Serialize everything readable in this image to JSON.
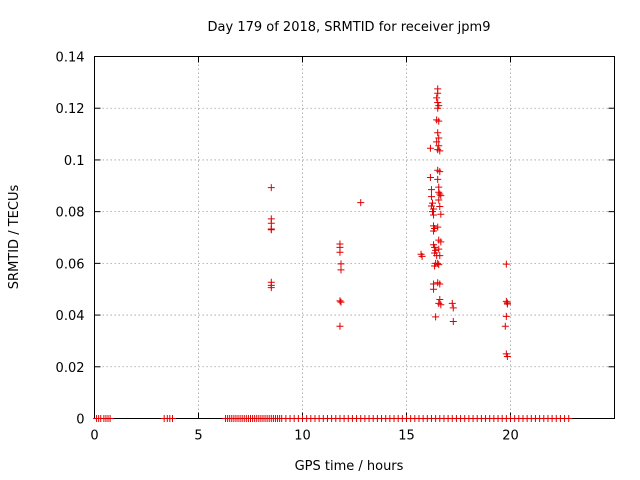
{
  "chart_data": {
    "type": "scatter",
    "title": "Day 179 of 2018, SRMTID for receiver jpm9",
    "xlabel": "GPS time / hours",
    "ylabel": "SRMTID / TECUs",
    "xlim": [
      0,
      25
    ],
    "ylim": [
      0,
      0.14
    ],
    "xticks": [
      0,
      5,
      10,
      15,
      20
    ],
    "xtick_labels": [
      "0",
      "5",
      "10",
      "15",
      "20"
    ],
    "yticks": [
      0,
      0.02,
      0.04,
      0.06,
      0.08,
      0.1,
      0.12,
      0.14
    ],
    "ytick_labels": [
      "0",
      "0.02",
      "0.04",
      "0.06",
      "0.08",
      "0.1",
      "0.12",
      "0.14"
    ],
    "grid": true,
    "series": [
      {
        "name": "SRMTID",
        "color": "#e00000",
        "marker": "plus",
        "baseline_x": [
          0.1,
          0.2,
          0.3,
          0.45,
          0.55,
          0.65,
          0.75,
          3.35,
          3.5,
          3.62,
          3.75,
          6.3,
          6.4,
          6.5,
          6.6,
          6.7,
          6.8,
          6.9,
          7.0,
          7.1,
          7.2,
          7.3,
          7.4,
          7.5,
          7.6,
          7.7,
          7.8,
          7.9,
          8.0,
          8.1,
          8.2,
          8.3,
          8.4,
          8.5,
          8.6,
          8.7,
          8.8,
          8.9,
          9.0,
          9.2,
          9.4,
          9.6,
          9.8,
          10.0,
          10.2,
          10.4,
          10.6,
          10.8,
          11.0,
          11.2,
          11.4,
          11.6,
          11.8,
          12.0,
          12.2,
          12.4,
          12.6,
          12.8,
          13.0,
          13.2,
          13.4,
          13.6,
          13.8,
          14.0,
          14.2,
          14.4,
          14.6,
          14.8,
          15.0,
          15.2,
          15.4,
          15.6,
          15.8,
          16.0,
          16.2,
          16.4,
          16.6,
          16.8,
          17.0,
          17.2,
          17.4,
          17.6,
          17.8,
          18.0,
          18.2,
          18.4,
          18.6,
          18.8,
          19.0,
          19.2,
          19.4,
          19.6,
          19.8,
          20.0,
          20.2,
          20.4,
          20.6,
          20.8,
          21.0,
          21.2,
          21.4,
          21.6,
          21.8,
          22.0,
          22.2,
          22.4,
          22.6,
          22.8
        ],
        "points": [
          [
            8.5,
            0.0893
          ],
          [
            8.5,
            0.0772
          ],
          [
            8.5,
            0.0755
          ],
          [
            8.5,
            0.0733
          ],
          [
            8.5,
            0.073
          ],
          [
            8.5,
            0.0527
          ],
          [
            8.5,
            0.0515
          ],
          [
            8.5,
            0.0506
          ],
          [
            11.8,
            0.0675
          ],
          [
            11.8,
            0.0662
          ],
          [
            11.8,
            0.0643
          ],
          [
            11.85,
            0.0598
          ],
          [
            11.85,
            0.0575
          ],
          [
            11.8,
            0.0455
          ],
          [
            11.85,
            0.045
          ],
          [
            11.8,
            0.0357
          ],
          [
            12.8,
            0.0835
          ],
          [
            15.7,
            0.0635
          ],
          [
            15.75,
            0.0627
          ],
          [
            16.15,
            0.1045
          ],
          [
            16.15,
            0.0932
          ],
          [
            16.2,
            0.0885
          ],
          [
            16.2,
            0.0858
          ],
          [
            16.25,
            0.0833
          ],
          [
            16.2,
            0.0822
          ],
          [
            16.3,
            0.081
          ],
          [
            16.25,
            0.08
          ],
          [
            16.3,
            0.0787
          ],
          [
            16.3,
            0.0745
          ],
          [
            16.35,
            0.0735
          ],
          [
            16.3,
            0.0725
          ],
          [
            16.3,
            0.0672
          ],
          [
            16.35,
            0.0662
          ],
          [
            16.4,
            0.065
          ],
          [
            16.35,
            0.064
          ],
          [
            16.45,
            0.063
          ],
          [
            16.4,
            0.06
          ],
          [
            16.35,
            0.059
          ],
          [
            16.3,
            0.052
          ],
          [
            16.3,
            0.05
          ],
          [
            16.4,
            0.0393
          ],
          [
            16.5,
            0.1275
          ],
          [
            16.5,
            0.1258
          ],
          [
            16.45,
            0.124
          ],
          [
            16.5,
            0.1222
          ],
          [
            16.55,
            0.121
          ],
          [
            16.5,
            0.12
          ],
          [
            16.45,
            0.1155
          ],
          [
            16.55,
            0.115
          ],
          [
            16.5,
            0.1105
          ],
          [
            16.55,
            0.1085
          ],
          [
            16.45,
            0.107
          ],
          [
            16.55,
            0.1055
          ],
          [
            16.5,
            0.104
          ],
          [
            16.6,
            0.1035
          ],
          [
            16.5,
            0.096
          ],
          [
            16.6,
            0.0955
          ],
          [
            16.5,
            0.0925
          ],
          [
            16.55,
            0.0895
          ],
          [
            16.55,
            0.0875
          ],
          [
            16.6,
            0.0868
          ],
          [
            16.65,
            0.0862
          ],
          [
            16.55,
            0.0845
          ],
          [
            16.6,
            0.082
          ],
          [
            16.65,
            0.079
          ],
          [
            16.5,
            0.074
          ],
          [
            16.55,
            0.069
          ],
          [
            16.65,
            0.0683
          ],
          [
            16.55,
            0.0655
          ],
          [
            16.6,
            0.063
          ],
          [
            16.5,
            0.06
          ],
          [
            16.55,
            0.0595
          ],
          [
            16.5,
            0.0525
          ],
          [
            16.6,
            0.052
          ],
          [
            16.6,
            0.046
          ],
          [
            16.55,
            0.0445
          ],
          [
            16.65,
            0.044
          ],
          [
            17.2,
            0.0445
          ],
          [
            17.25,
            0.0428
          ],
          [
            17.25,
            0.0375
          ],
          [
            19.8,
            0.0597
          ],
          [
            19.8,
            0.0453
          ],
          [
            19.85,
            0.0447
          ],
          [
            19.85,
            0.0443
          ],
          [
            19.8,
            0.0395
          ],
          [
            19.75,
            0.0357
          ],
          [
            19.8,
            0.025
          ],
          [
            19.85,
            0.024
          ]
        ]
      }
    ]
  }
}
